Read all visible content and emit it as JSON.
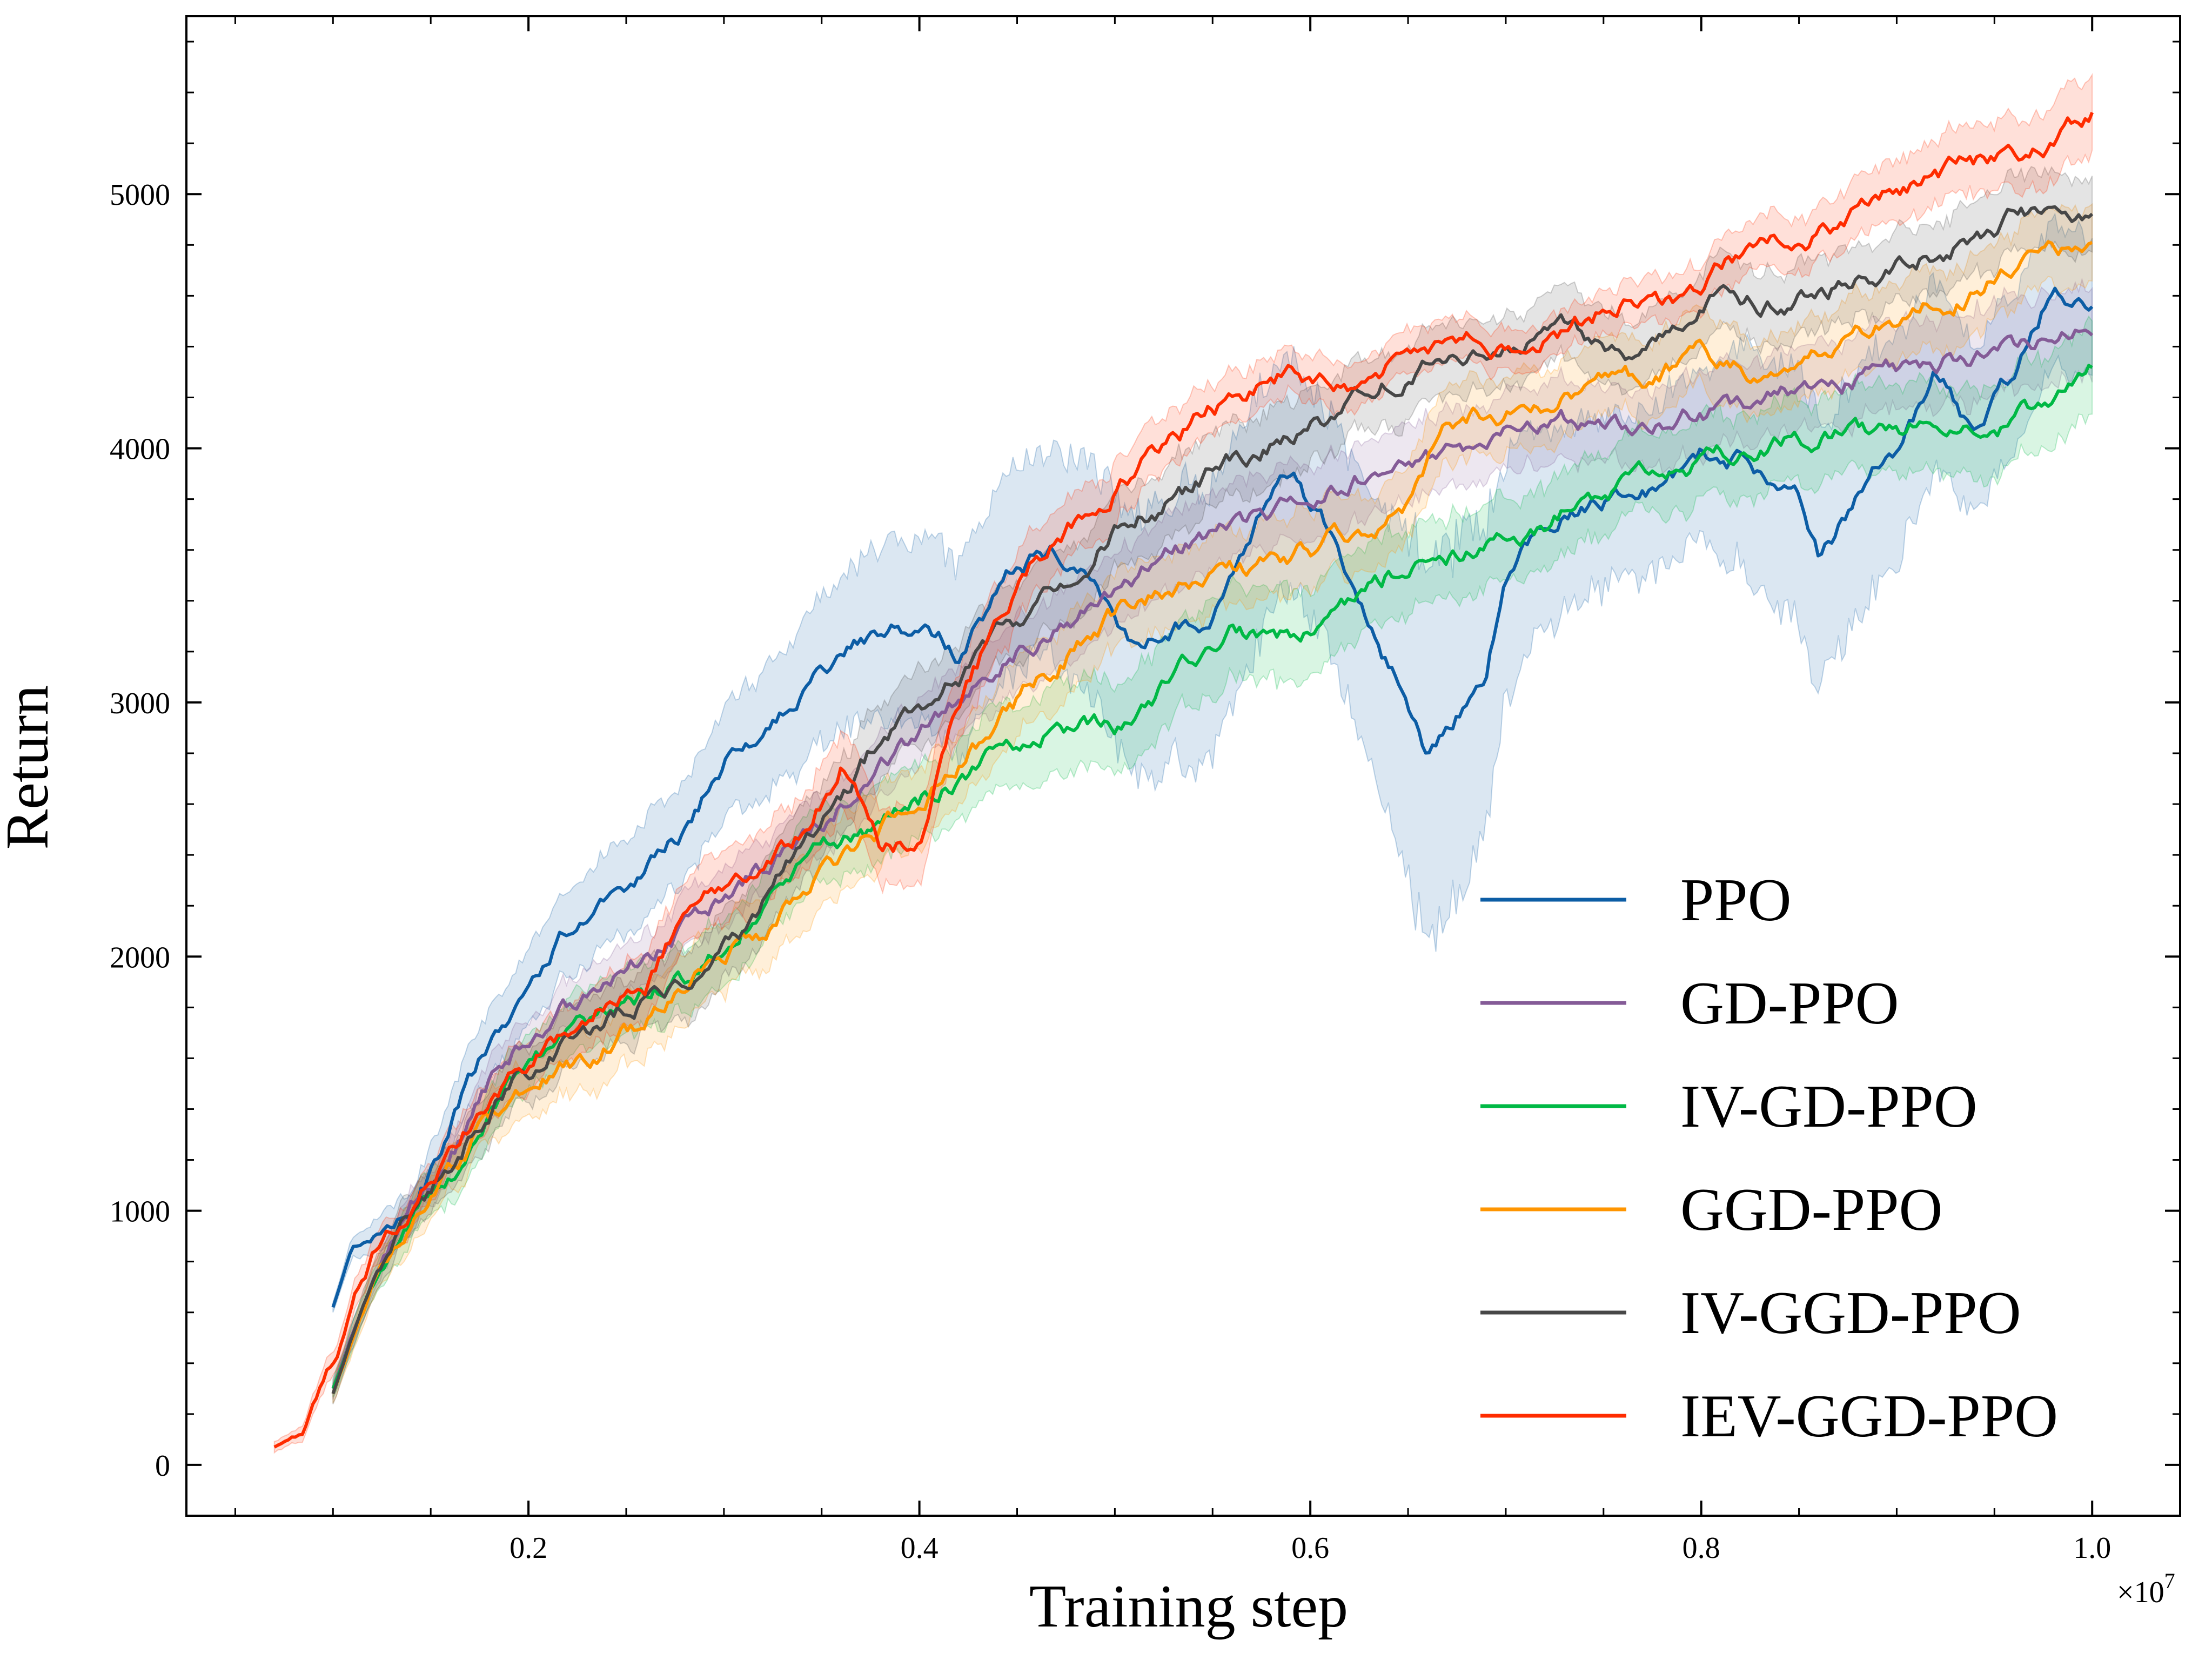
{
  "chart_data": {
    "type": "line",
    "title": "",
    "xlabel": "Training step",
    "ylabel": "Return",
    "x_multiplier_label": "×10",
    "x_multiplier_exponent": "7",
    "xlim": [
      0.025,
      1.045
    ],
    "ylim": [
      -200,
      5700
    ],
    "xticks": [
      0.2,
      0.4,
      0.6,
      0.8,
      1.0
    ],
    "xtick_labels": [
      "0.2",
      "0.4",
      "0.6",
      "0.8",
      "1.0"
    ],
    "yticks": [
      0,
      1000,
      2000,
      3000,
      4000,
      5000
    ],
    "ytick_labels": [
      "0",
      "1000",
      "2000",
      "3000",
      "4000",
      "5000"
    ],
    "legend_position": "lower-right",
    "series": [
      {
        "name": "PPO",
        "color": "#0C5DA5",
        "x": [
          0.1,
          0.11,
          0.12,
          0.13,
          0.15,
          0.17,
          0.2,
          0.22,
          0.25,
          0.28,
          0.3,
          0.33,
          0.36,
          0.38,
          0.4,
          0.42,
          0.45,
          0.47,
          0.49,
          0.51,
          0.53,
          0.55,
          0.57,
          0.59,
          0.61,
          0.63,
          0.65,
          0.66,
          0.67,
          0.69,
          0.7,
          0.72,
          0.75,
          0.78,
          0.8,
          0.82,
          0.85,
          0.86,
          0.88,
          0.9,
          0.92,
          0.94,
          0.96,
          0.98,
          1.0
        ],
        "y": [
          620,
          850,
          900,
          950,
          1150,
          1500,
          1900,
          2100,
          2300,
          2500,
          2750,
          2950,
          3200,
          3300,
          3300,
          3200,
          3550,
          3600,
          3500,
          3200,
          3300,
          3350,
          3700,
          3900,
          3650,
          3300,
          3000,
          2800,
          2900,
          3100,
          3500,
          3700,
          3800,
          3850,
          4000,
          3950,
          3800,
          3600,
          3800,
          4000,
          4300,
          4050,
          4300,
          4650,
          4550
        ],
        "band": [
          20,
          40,
          60,
          80,
          100,
          120,
          150,
          170,
          180,
          200,
          220,
          260,
          300,
          330,
          360,
          380,
          400,
          420,
          450,
          500,
          530,
          560,
          500,
          450,
          450,
          520,
          700,
          750,
          700,
          600,
          480,
          380,
          330,
          330,
          350,
          420,
          500,
          520,
          480,
          430,
          380,
          330,
          300,
          280,
          260
        ]
      },
      {
        "name": "GD-PPO",
        "color": "#845B97",
        "x": [
          0.1,
          0.12,
          0.14,
          0.16,
          0.18,
          0.2,
          0.23,
          0.26,
          0.29,
          0.32,
          0.35,
          0.38,
          0.41,
          0.44,
          0.47,
          0.5,
          0.53,
          0.56,
          0.6,
          0.63,
          0.66,
          0.7,
          0.73,
          0.76,
          0.8,
          0.83,
          0.86,
          0.9,
          0.93,
          0.96,
          1.0
        ],
        "y": [
          300,
          750,
          1000,
          1200,
          1500,
          1700,
          1850,
          2000,
          2150,
          2350,
          2550,
          2750,
          2950,
          3150,
          3300,
          3450,
          3600,
          3700,
          3800,
          3900,
          3950,
          4050,
          4100,
          4100,
          4150,
          4200,
          4250,
          4300,
          4350,
          4400,
          4500
        ],
        "band": [
          40,
          50,
          60,
          70,
          80,
          90,
          100,
          100,
          110,
          110,
          120,
          120,
          130,
          140,
          150,
          150,
          150,
          150,
          150,
          150,
          150,
          150,
          150,
          150,
          160,
          160,
          170,
          170,
          180,
          180,
          180
        ]
      },
      {
        "name": "IV-GD-PPO",
        "color": "#00B945",
        "x": [
          0.1,
          0.12,
          0.14,
          0.16,
          0.18,
          0.2,
          0.23,
          0.26,
          0.29,
          0.32,
          0.35,
          0.38,
          0.41,
          0.44,
          0.47,
          0.5,
          0.53,
          0.56,
          0.59,
          0.62,
          0.65,
          0.68,
          0.7,
          0.73,
          0.76,
          0.8,
          0.83,
          0.86,
          0.9,
          0.93,
          0.96,
          1.0
        ],
        "y": [
          300,
          700,
          950,
          1150,
          1350,
          1550,
          1700,
          1850,
          1950,
          2200,
          2400,
          2500,
          2650,
          2800,
          2900,
          2900,
          3100,
          3300,
          3250,
          3400,
          3550,
          3600,
          3650,
          3750,
          3850,
          3950,
          4000,
          4050,
          4050,
          4150,
          4100,
          4300
        ],
        "band": [
          40,
          60,
          80,
          90,
          100,
          110,
          120,
          130,
          130,
          140,
          150,
          150,
          150,
          160,
          170,
          180,
          180,
          180,
          180,
          170,
          160,
          160,
          160,
          160,
          160,
          160,
          160,
          160,
          170,
          170,
          180,
          180
        ]
      },
      {
        "name": "GGD-PPO",
        "color": "#FF9500",
        "x": [
          0.1,
          0.12,
          0.14,
          0.16,
          0.18,
          0.2,
          0.23,
          0.26,
          0.29,
          0.32,
          0.35,
          0.38,
          0.41,
          0.44,
          0.47,
          0.5,
          0.53,
          0.56,
          0.6,
          0.63,
          0.65,
          0.67,
          0.7,
          0.73,
          0.76,
          0.8,
          0.83,
          0.86,
          0.9,
          0.93,
          0.96,
          1.0
        ],
        "y": [
          280,
          700,
          950,
          1150,
          1350,
          1500,
          1600,
          1750,
          1950,
          2100,
          2300,
          2500,
          2700,
          2900,
          3150,
          3350,
          3450,
          3500,
          3600,
          3700,
          3750,
          4100,
          4150,
          4200,
          4250,
          4350,
          4300,
          4400,
          4500,
          4600,
          4700,
          4800
        ],
        "band": [
          40,
          60,
          80,
          90,
          100,
          110,
          120,
          130,
          140,
          140,
          150,
          150,
          150,
          150,
          150,
          150,
          150,
          150,
          150,
          150,
          150,
          150,
          150,
          150,
          150,
          150,
          150,
          150,
          150,
          150,
          150,
          150
        ]
      },
      {
        "name": "IV-GGD-PPO",
        "color": "#474747",
        "x": [
          0.1,
          0.12,
          0.14,
          0.16,
          0.18,
          0.2,
          0.23,
          0.26,
          0.29,
          0.32,
          0.35,
          0.38,
          0.41,
          0.44,
          0.47,
          0.5,
          0.53,
          0.56,
          0.6,
          0.63,
          0.66,
          0.68,
          0.7,
          0.73,
          0.76,
          0.79,
          0.81,
          0.84,
          0.87,
          0.9,
          0.93,
          0.96,
          1.0
        ],
        "y": [
          280,
          720,
          980,
          1200,
          1400,
          1550,
          1700,
          1850,
          1900,
          2200,
          2550,
          2850,
          3000,
          3250,
          3450,
          3700,
          3800,
          3950,
          4100,
          4200,
          4350,
          4400,
          4400,
          4450,
          4350,
          4450,
          4650,
          4550,
          4650,
          4700,
          4800,
          4900,
          4900
        ],
        "band": [
          40,
          60,
          80,
          90,
          100,
          110,
          120,
          130,
          140,
          150,
          150,
          150,
          150,
          150,
          150,
          150,
          150,
          150,
          150,
          140,
          140,
          140,
          140,
          140,
          140,
          140,
          140,
          140,
          140,
          140,
          140,
          150,
          150
        ]
      },
      {
        "name": "IEV-GGD-PPO",
        "color": "#FF2C00",
        "x": [
          0.07,
          0.085,
          0.1,
          0.12,
          0.14,
          0.16,
          0.18,
          0.2,
          0.22,
          0.24,
          0.26,
          0.28,
          0.3,
          0.32,
          0.34,
          0.36,
          0.38,
          0.4,
          0.42,
          0.44,
          0.46,
          0.48,
          0.5,
          0.53,
          0.56,
          0.59,
          0.62,
          0.65,
          0.68,
          0.7,
          0.73,
          0.76,
          0.79,
          0.82,
          0.86,
          0.9,
          0.93,
          0.96,
          1.0
        ],
        "y": [
          70,
          120,
          400,
          800,
          1000,
          1200,
          1450,
          1550,
          1700,
          1850,
          1900,
          2150,
          2300,
          2400,
          2500,
          2750,
          2450,
          2450,
          3000,
          3300,
          3550,
          3700,
          3850,
          4050,
          4200,
          4300,
          4250,
          4350,
          4450,
          4400,
          4450,
          4600,
          4550,
          4750,
          4850,
          5000,
          5100,
          5150,
          5300
        ],
        "band": [
          20,
          30,
          50,
          60,
          70,
          80,
          90,
          100,
          110,
          120,
          130,
          130,
          140,
          150,
          150,
          160,
          150,
          150,
          140,
          140,
          130,
          120,
          120,
          100,
          100,
          90,
          90,
          90,
          80,
          80,
          80,
          90,
          90,
          100,
          110,
          120,
          130,
          140,
          150
        ]
      }
    ]
  }
}
